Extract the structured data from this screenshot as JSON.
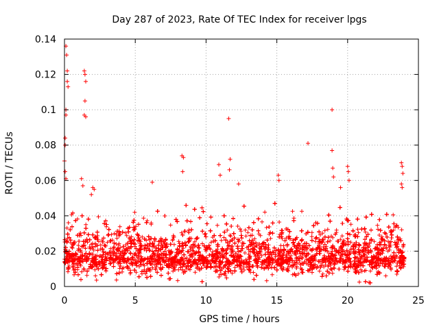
{
  "chart_data": {
    "type": "scatter",
    "title": "Day 287 of 2023, Rate Of TEC Index for receiver lpgs",
    "xlabel": "GPS time / hours",
    "ylabel": "ROTI / TECUs",
    "xlim": [
      0,
      25
    ],
    "ylim": [
      0,
      0.14
    ],
    "x_ticks": [
      0,
      5,
      10,
      15,
      20,
      25
    ],
    "x_tick_labels": [
      "0",
      "5",
      "10",
      "15",
      "20",
      "25"
    ],
    "y_ticks": [
      0,
      0.02,
      0.04,
      0.06,
      0.08,
      0.1,
      0.12,
      0.14
    ],
    "y_tick_labels": [
      "0",
      "0.02",
      "0.04",
      "0.06",
      "0.08",
      "0.1",
      "0.12",
      "0.14"
    ],
    "grid": true,
    "marker": "+",
    "series": [
      {
        "name": "ROTI",
        "color": "#ff0000",
        "bulk": {
          "x_range": [
            0,
            24
          ],
          "baseline": 0.016,
          "spread": 0.01,
          "max_typical": 0.047,
          "count": 6000
        },
        "notable_points": [
          {
            "x": 0.1,
            "y": 0.136
          },
          {
            "x": 0.15,
            "y": 0.131
          },
          {
            "x": 0.2,
            "y": 0.122
          },
          {
            "x": 0.2,
            "y": 0.116
          },
          {
            "x": 0.25,
            "y": 0.113
          },
          {
            "x": 0.1,
            "y": 0.1
          },
          {
            "x": 0.1,
            "y": 0.097
          },
          {
            "x": 0.05,
            "y": 0.084
          },
          {
            "x": 0.05,
            "y": 0.08
          },
          {
            "x": 0.0,
            "y": 0.071
          },
          {
            "x": 0.05,
            "y": 0.065
          },
          {
            "x": 0.1,
            "y": 0.061
          },
          {
            "x": 1.4,
            "y": 0.122
          },
          {
            "x": 1.45,
            "y": 0.12
          },
          {
            "x": 1.5,
            "y": 0.116
          },
          {
            "x": 1.45,
            "y": 0.105
          },
          {
            "x": 1.4,
            "y": 0.097
          },
          {
            "x": 1.5,
            "y": 0.096
          },
          {
            "x": 1.2,
            "y": 0.061
          },
          {
            "x": 1.3,
            "y": 0.057
          },
          {
            "x": 2.0,
            "y": 0.056
          },
          {
            "x": 2.1,
            "y": 0.055
          },
          {
            "x": 1.9,
            "y": 0.052
          },
          {
            "x": 6.2,
            "y": 0.059
          },
          {
            "x": 8.3,
            "y": 0.074
          },
          {
            "x": 8.4,
            "y": 0.073
          },
          {
            "x": 8.35,
            "y": 0.065
          },
          {
            "x": 10.9,
            "y": 0.069
          },
          {
            "x": 11.0,
            "y": 0.063
          },
          {
            "x": 11.6,
            "y": 0.095
          },
          {
            "x": 11.7,
            "y": 0.072
          },
          {
            "x": 11.65,
            "y": 0.066
          },
          {
            "x": 12.3,
            "y": 0.058
          },
          {
            "x": 15.1,
            "y": 0.063
          },
          {
            "x": 15.15,
            "y": 0.06
          },
          {
            "x": 17.2,
            "y": 0.081
          },
          {
            "x": 18.9,
            "y": 0.1
          },
          {
            "x": 18.9,
            "y": 0.077
          },
          {
            "x": 18.95,
            "y": 0.067
          },
          {
            "x": 19.0,
            "y": 0.062
          },
          {
            "x": 19.5,
            "y": 0.056
          },
          {
            "x": 20.0,
            "y": 0.068
          },
          {
            "x": 20.05,
            "y": 0.065
          },
          {
            "x": 20.1,
            "y": 0.06
          },
          {
            "x": 23.8,
            "y": 0.07
          },
          {
            "x": 23.85,
            "y": 0.068
          },
          {
            "x": 23.9,
            "y": 0.064
          },
          {
            "x": 23.8,
            "y": 0.058
          },
          {
            "x": 23.85,
            "y": 0.056
          }
        ]
      }
    ]
  }
}
